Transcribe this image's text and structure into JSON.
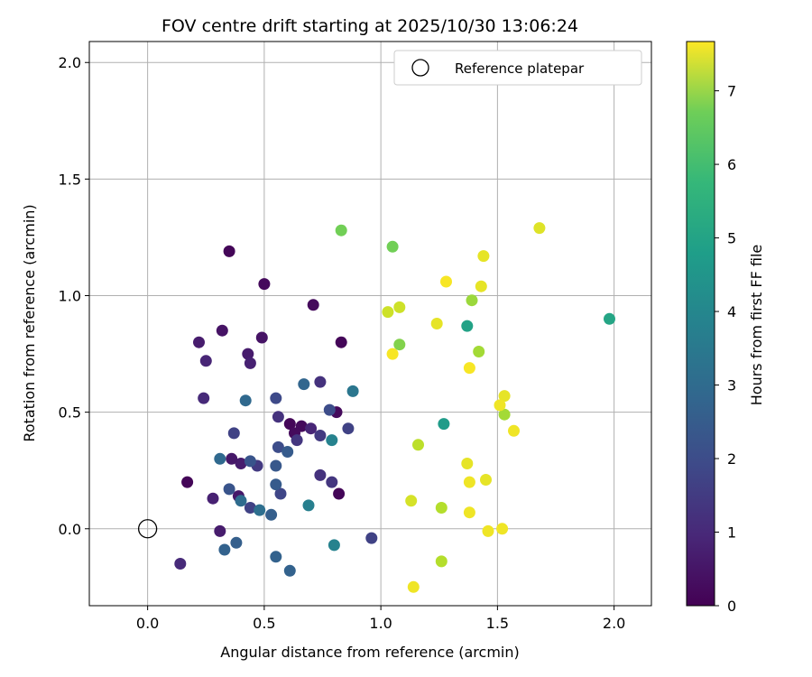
{
  "chart_data": {
    "type": "scatter",
    "title": "FOV centre drift starting at 2025/10/30 13:06:24",
    "xlabel": "Angular distance from reference (arcmin)",
    "ylabel": "Rotation from reference (arcmin)",
    "xlim": [
      -0.25,
      2.16
    ],
    "ylim": [
      -0.33,
      2.09
    ],
    "xticks": [
      "0.0",
      "0.5",
      "1.0",
      "1.5",
      "2.0"
    ],
    "yticks": [
      "0.0",
      "0.5",
      "1.0",
      "1.5",
      "2.0"
    ],
    "grid": true,
    "legend": {
      "position": "top-right",
      "entries": [
        {
          "label": "Reference platepar",
          "marker": "open-circle"
        }
      ]
    },
    "reference": {
      "x": 0.0,
      "y": 0.0
    },
    "colorbar": {
      "label": "Hours from first FF file",
      "range": [
        0,
        7.67
      ],
      "ticks": [
        "0",
        "1",
        "2",
        "3",
        "4",
        "5",
        "6",
        "7"
      ],
      "colormap": "viridis"
    },
    "points": [
      {
        "x": 0.35,
        "y": 1.19,
        "h": 0.1
      },
      {
        "x": 0.5,
        "y": 1.05,
        "h": 0.2
      },
      {
        "x": 0.71,
        "y": 0.96,
        "h": 0.2
      },
      {
        "x": 0.83,
        "y": 0.8,
        "h": 0.1
      },
      {
        "x": 0.81,
        "y": 0.5,
        "h": 0.2
      },
      {
        "x": 0.82,
        "y": 0.15,
        "h": 0.1
      },
      {
        "x": 0.17,
        "y": 0.2,
        "h": 0.1
      },
      {
        "x": 0.61,
        "y": 0.45,
        "h": 0.1
      },
      {
        "x": 0.66,
        "y": 0.44,
        "h": 0.2
      },
      {
        "x": 0.63,
        "y": 0.41,
        "h": 0.2
      },
      {
        "x": 0.32,
        "y": 0.85,
        "h": 0.4
      },
      {
        "x": 0.49,
        "y": 0.82,
        "h": 0.4
      },
      {
        "x": 0.22,
        "y": 0.8,
        "h": 0.6
      },
      {
        "x": 0.43,
        "y": 0.75,
        "h": 0.6
      },
      {
        "x": 0.44,
        "y": 0.71,
        "h": 0.7
      },
      {
        "x": 0.25,
        "y": 0.72,
        "h": 0.8
      },
      {
        "x": 0.24,
        "y": 0.56,
        "h": 0.9
      },
      {
        "x": 0.28,
        "y": 0.13,
        "h": 0.7
      },
      {
        "x": 0.31,
        "y": -0.01,
        "h": 0.6
      },
      {
        "x": 0.14,
        "y": -0.15,
        "h": 0.9
      },
      {
        "x": 0.39,
        "y": 0.14,
        "h": 0.5
      },
      {
        "x": 0.4,
        "y": 0.28,
        "h": 0.6
      },
      {
        "x": 0.36,
        "y": 0.3,
        "h": 0.5
      },
      {
        "x": 0.7,
        "y": 0.43,
        "h": 0.8
      },
      {
        "x": 0.56,
        "y": 0.48,
        "h": 1.1
      },
      {
        "x": 0.74,
        "y": 0.63,
        "h": 1.1
      },
      {
        "x": 0.74,
        "y": 0.4,
        "h": 1.3
      },
      {
        "x": 0.64,
        "y": 0.38,
        "h": 1.2
      },
      {
        "x": 0.74,
        "y": 0.23,
        "h": 1.1
      },
      {
        "x": 0.79,
        "y": 0.2,
        "h": 1.2
      },
      {
        "x": 0.86,
        "y": 0.43,
        "h": 1.5
      },
      {
        "x": 0.96,
        "y": -0.04,
        "h": 1.5
      },
      {
        "x": 0.47,
        "y": 0.27,
        "h": 1.3
      },
      {
        "x": 0.37,
        "y": 0.41,
        "h": 1.5
      },
      {
        "x": 0.44,
        "y": 0.09,
        "h": 1.5
      },
      {
        "x": 0.57,
        "y": 0.15,
        "h": 1.6
      },
      {
        "x": 0.55,
        "y": 0.56,
        "h": 1.7
      },
      {
        "x": 0.56,
        "y": 0.35,
        "h": 1.8
      },
      {
        "x": 0.78,
        "y": 0.51,
        "h": 1.8
      },
      {
        "x": 0.35,
        "y": 0.17,
        "h": 2.0
      },
      {
        "x": 0.44,
        "y": 0.29,
        "h": 2.0
      },
      {
        "x": 0.55,
        "y": 0.27,
        "h": 2.1
      },
      {
        "x": 0.6,
        "y": 0.33,
        "h": 2.2
      },
      {
        "x": 0.55,
        "y": 0.19,
        "h": 2.2
      },
      {
        "x": 0.53,
        "y": 0.06,
        "h": 2.3
      },
      {
        "x": 0.38,
        "y": -0.06,
        "h": 2.3
      },
      {
        "x": 0.33,
        "y": -0.09,
        "h": 2.4
      },
      {
        "x": 0.55,
        "y": -0.12,
        "h": 2.4
      },
      {
        "x": 0.61,
        "y": -0.18,
        "h": 2.4
      },
      {
        "x": 0.4,
        "y": 0.12,
        "h": 2.7
      },
      {
        "x": 0.48,
        "y": 0.08,
        "h": 2.8
      },
      {
        "x": 0.31,
        "y": 0.3,
        "h": 2.6
      },
      {
        "x": 0.42,
        "y": 0.55,
        "h": 2.6
      },
      {
        "x": 0.67,
        "y": 0.62,
        "h": 2.5
      },
      {
        "x": 0.88,
        "y": 0.59,
        "h": 3.0
      },
      {
        "x": 0.79,
        "y": 0.38,
        "h": 3.4
      },
      {
        "x": 0.69,
        "y": 0.1,
        "h": 3.3
      },
      {
        "x": 0.8,
        "y": -0.07,
        "h": 3.4
      },
      {
        "x": 1.27,
        "y": 0.45,
        "h": 4.2
      },
      {
        "x": 1.37,
        "y": 0.87,
        "h": 4.4
      },
      {
        "x": 1.98,
        "y": 0.9,
        "h": 4.5
      },
      {
        "x": 0.83,
        "y": 1.28,
        "h": 6.0
      },
      {
        "x": 1.05,
        "y": 1.21,
        "h": 6.0
      },
      {
        "x": 1.08,
        "y": 0.79,
        "h": 6.2
      },
      {
        "x": 1.39,
        "y": 0.98,
        "h": 6.5
      },
      {
        "x": 1.42,
        "y": 0.76,
        "h": 6.6
      },
      {
        "x": 1.53,
        "y": 0.49,
        "h": 6.6
      },
      {
        "x": 1.26,
        "y": 0.09,
        "h": 6.8
      },
      {
        "x": 1.26,
        "y": -0.14,
        "h": 6.8
      },
      {
        "x": 1.16,
        "y": 0.36,
        "h": 6.9
      },
      {
        "x": 1.03,
        "y": 0.93,
        "h": 7.1
      },
      {
        "x": 1.08,
        "y": 0.95,
        "h": 7.1
      },
      {
        "x": 1.13,
        "y": 0.12,
        "h": 7.2
      },
      {
        "x": 1.68,
        "y": 1.29,
        "h": 7.3
      },
      {
        "x": 1.44,
        "y": 1.17,
        "h": 7.4
      },
      {
        "x": 1.43,
        "y": 1.04,
        "h": 7.4
      },
      {
        "x": 1.24,
        "y": 0.88,
        "h": 7.4
      },
      {
        "x": 1.37,
        "y": 0.28,
        "h": 7.4
      },
      {
        "x": 1.45,
        "y": 0.21,
        "h": 7.4
      },
      {
        "x": 1.53,
        "y": 0.57,
        "h": 7.4
      },
      {
        "x": 1.51,
        "y": 0.53,
        "h": 7.5
      },
      {
        "x": 1.57,
        "y": 0.42,
        "h": 7.5
      },
      {
        "x": 1.38,
        "y": 0.2,
        "h": 7.5
      },
      {
        "x": 1.38,
        "y": 0.07,
        "h": 7.5
      },
      {
        "x": 1.46,
        "y": -0.01,
        "h": 7.5
      },
      {
        "x": 1.52,
        "y": 0.0,
        "h": 7.5
      },
      {
        "x": 1.14,
        "y": -0.25,
        "h": 7.5
      },
      {
        "x": 1.28,
        "y": 1.06,
        "h": 7.6
      },
      {
        "x": 1.38,
        "y": 0.69,
        "h": 7.6
      },
      {
        "x": 1.05,
        "y": 0.75,
        "h": 7.6
      }
    ]
  }
}
